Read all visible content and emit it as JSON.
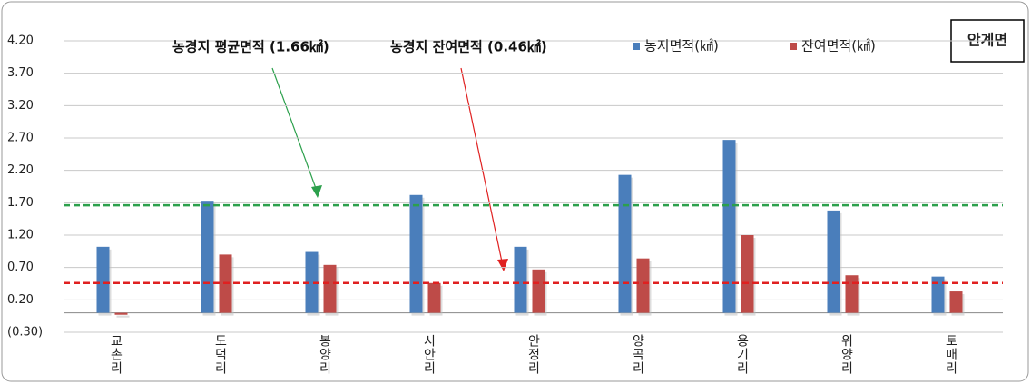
{
  "chart_data": {
    "type": "bar",
    "categories": [
      "교촌리",
      "도덕리",
      "봉양리",
      "시안리",
      "안정리",
      "양곡리",
      "용기리",
      "위양리",
      "토매리"
    ],
    "series": [
      {
        "name": "농지면적(㎢)",
        "color": "#4a7ebb",
        "values": [
          1.02,
          1.73,
          0.94,
          1.82,
          1.02,
          2.13,
          2.67,
          1.58,
          0.56
        ]
      },
      {
        "name": "잔여면적(㎢)",
        "color": "#be4b48",
        "values": [
          -0.03,
          0.9,
          0.74,
          0.46,
          0.67,
          0.84,
          1.2,
          0.58,
          0.33
        ]
      }
    ],
    "ref_lines": [
      {
        "label": "농경지 평균면적 (1.66㎢)",
        "value": 1.66,
        "color": "#2ca04c"
      },
      {
        "label": "농경지 잔여면적 (0.46㎢)",
        "value": 0.46,
        "color": "#e02020"
      }
    ],
    "region": "안계면",
    "ylim": [
      -0.3,
      4.2
    ],
    "yticks": [
      {
        "value": -0.3,
        "label": "(0.30)"
      },
      {
        "value": 0.2,
        "label": "0.20"
      },
      {
        "value": 0.7,
        "label": "0.70"
      },
      {
        "value": 1.2,
        "label": "1.20"
      },
      {
        "value": 1.7,
        "label": "1.70"
      },
      {
        "value": 2.2,
        "label": "2.20"
      },
      {
        "value": 2.7,
        "label": "2.70"
      },
      {
        "value": 3.2,
        "label": "3.20"
      },
      {
        "value": 3.7,
        "label": "3.70"
      },
      {
        "value": 4.2,
        "label": "4.20"
      }
    ],
    "grid": true
  }
}
